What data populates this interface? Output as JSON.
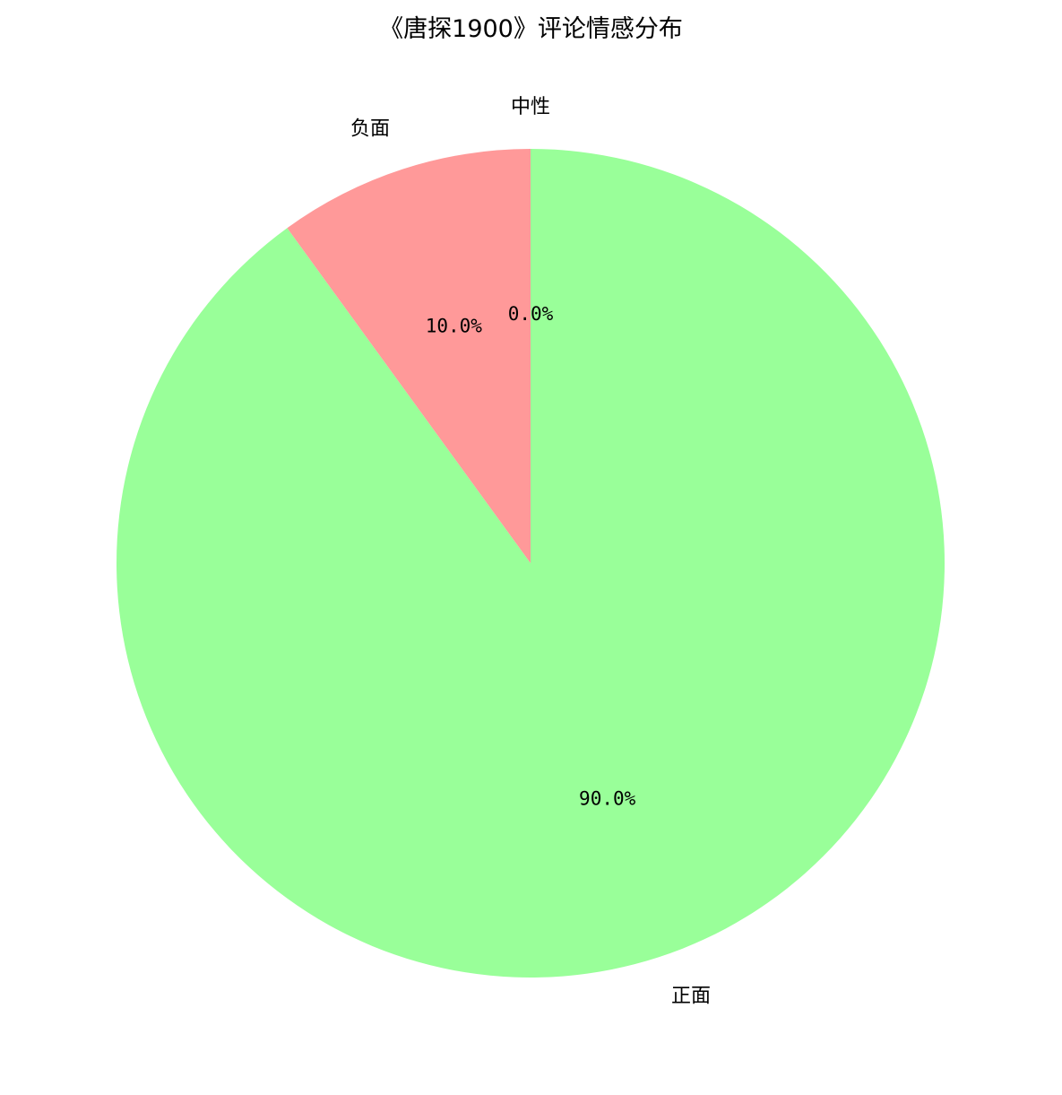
{
  "chart_data": {
    "type": "pie",
    "title": "《唐探1900》评论情感分布",
    "categories": [
      "正面",
      "负面",
      "中性"
    ],
    "values": [
      90.0,
      10.0,
      0.0
    ],
    "percent_labels": [
      "90.0%",
      "10.0%",
      "0.0%"
    ],
    "colors": [
      "#99ff99",
      "#ff9999",
      "#66b3ff"
    ],
    "start_angle_deg": 90,
    "direction": "clockwise",
    "legend": "none"
  }
}
